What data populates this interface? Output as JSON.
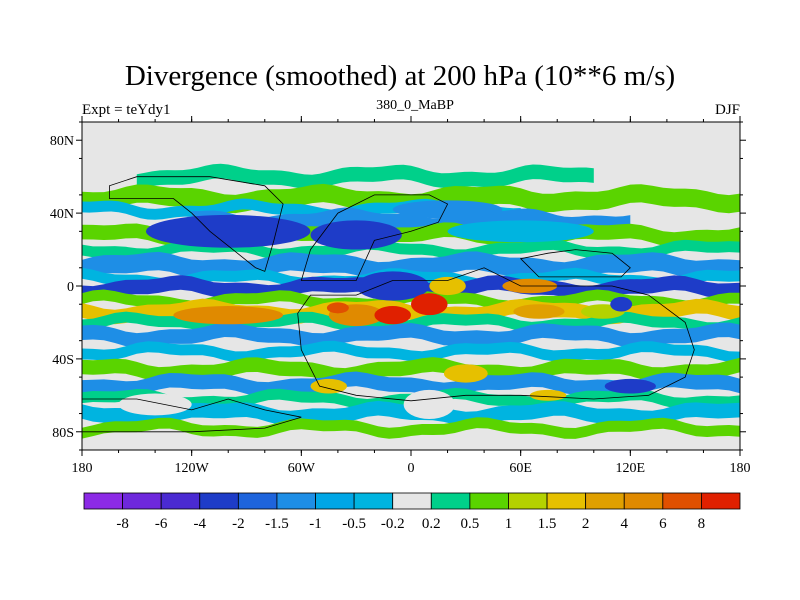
{
  "title": "Divergence (smoothed) at 200 hPa (10**6 m/s)",
  "left_string": "Expt = teYdy1",
  "center_string": "380_0_MaBP",
  "right_string": "DJF",
  "map": {
    "projection": "cylindrical-equidistant",
    "lon_range": [
      -180,
      180
    ],
    "lat_range": [
      -90,
      90
    ],
    "lat_ticks": [
      {
        "value": 80,
        "label": "80N"
      },
      {
        "value": 40,
        "label": "40N"
      },
      {
        "value": 0,
        "label": "0"
      },
      {
        "value": -40,
        "label": "40S"
      },
      {
        "value": -80,
        "label": "80S"
      }
    ],
    "lon_ticks": [
      {
        "value": -180,
        "label": "180"
      },
      {
        "value": -120,
        "label": "120W"
      },
      {
        "value": -60,
        "label": "60W"
      },
      {
        "value": 0,
        "label": "0"
      },
      {
        "value": 60,
        "label": "60E"
      },
      {
        "value": 120,
        "label": "120E"
      },
      {
        "value": 180,
        "label": "180"
      }
    ],
    "background_color": "#e6e6e6",
    "divergence_bands": [
      {
        "lat": 73,
        "half_width": 3,
        "lon_start": -180,
        "lon_end": 180,
        "color": "#e6e6e6"
      },
      {
        "lat": 60,
        "half_width": 4,
        "lon_start": -150,
        "lon_end": 100,
        "color": "#00d08a"
      },
      {
        "lat": 48,
        "half_width": 5,
        "lon_start": -180,
        "lon_end": 180,
        "color": "#5ad400"
      },
      {
        "lat": 42,
        "half_width": 3,
        "lon_start": -180,
        "lon_end": 60,
        "color": "#00b4e0"
      },
      {
        "lat": 36,
        "half_width": 4,
        "lon_start": -120,
        "lon_end": 120,
        "color": "#1e8ee6"
      },
      {
        "lat": 28,
        "half_width": 4,
        "lon_start": -180,
        "lon_end": 180,
        "color": "#5ad400"
      },
      {
        "lat": 20,
        "half_width": 3,
        "lon_start": -180,
        "lon_end": 180,
        "color": "#00d08a"
      },
      {
        "lat": 11,
        "half_width": 5,
        "lon_start": -180,
        "lon_end": 180,
        "color": "#1e8ee6"
      },
      {
        "lat": 4,
        "half_width": 3,
        "lon_start": -180,
        "lon_end": 180,
        "color": "#00b4e0"
      },
      {
        "lat": -1,
        "half_width": 4,
        "lon_start": -180,
        "lon_end": 180,
        "color": "#1e3cc8"
      },
      {
        "lat": -8,
        "half_width": 3,
        "lon_start": -180,
        "lon_end": 180,
        "color": "#5ad400"
      },
      {
        "lat": -14,
        "half_width": 4,
        "lon_start": -180,
        "lon_end": 180,
        "color": "#e6c000"
      },
      {
        "lat": -20,
        "half_width": 3,
        "lon_start": -180,
        "lon_end": 180,
        "color": "#00d08a"
      },
      {
        "lat": -27,
        "half_width": 4,
        "lon_start": -180,
        "lon_end": 180,
        "color": "#1e8ee6"
      },
      {
        "lat": -36,
        "half_width": 3,
        "lon_start": -180,
        "lon_end": 180,
        "color": "#00b4e0"
      },
      {
        "lat": -46,
        "half_width": 4,
        "lon_start": -180,
        "lon_end": 180,
        "color": "#5ad400"
      },
      {
        "lat": -54,
        "half_width": 4,
        "lon_start": -180,
        "lon_end": 180,
        "color": "#1e8ee6"
      },
      {
        "lat": -62,
        "half_width": 3,
        "lon_start": -180,
        "lon_end": 180,
        "color": "#00d08a"
      },
      {
        "lat": -70,
        "half_width": 4,
        "lon_start": -180,
        "lon_end": 180,
        "color": "#00b4e0"
      },
      {
        "lat": -78,
        "half_width": 3,
        "lon_start": -180,
        "lon_end": 180,
        "color": "#5ad400"
      }
    ],
    "divergence_blobs": [
      {
        "lon": -100,
        "lat": 30,
        "rlon": 45,
        "rlat": 9,
        "color": "#1e3cc8"
      },
      {
        "lon": -30,
        "lat": 28,
        "rlon": 25,
        "rlat": 8,
        "color": "#1e3cc8"
      },
      {
        "lon": 20,
        "lat": 42,
        "rlon": 30,
        "rlat": 5,
        "color": "#1e8ee6"
      },
      {
        "lon": 60,
        "lat": 30,
        "rlon": 40,
        "rlat": 6,
        "color": "#00b4e0"
      },
      {
        "lon": -10,
        "lat": 0,
        "rlon": 20,
        "rlat": 8,
        "color": "#1e3cc8"
      },
      {
        "lon": 20,
        "lat": 0,
        "rlon": 10,
        "rlat": 5,
        "color": "#e6c000"
      },
      {
        "lon": 65,
        "lat": 0,
        "rlon": 15,
        "rlat": 4,
        "color": "#e08a00"
      },
      {
        "lon": -100,
        "lat": -16,
        "rlon": 30,
        "rlat": 5,
        "color": "#e08a00"
      },
      {
        "lon": -30,
        "lat": -16,
        "rlon": 15,
        "rlat": 6,
        "color": "#e08a00"
      },
      {
        "lon": -10,
        "lat": -16,
        "rlon": 10,
        "rlat": 5,
        "color": "#e02000"
      },
      {
        "lon": 10,
        "lat": -10,
        "rlon": 10,
        "rlat": 6,
        "color": "#e02000"
      },
      {
        "lon": -40,
        "lat": -12,
        "rlon": 6,
        "rlat": 3,
        "color": "#e05000"
      },
      {
        "lon": 70,
        "lat": -14,
        "rlon": 14,
        "rlat": 4,
        "color": "#e0a000"
      },
      {
        "lon": 105,
        "lat": -14,
        "rlon": 12,
        "rlat": 4,
        "color": "#b4d200"
      },
      {
        "lon": 115,
        "lat": -10,
        "rlon": 6,
        "rlat": 4,
        "color": "#1e3cc8"
      },
      {
        "lon": -45,
        "lat": -55,
        "rlon": 10,
        "rlat": 4,
        "color": "#e6c000"
      },
      {
        "lon": 30,
        "lat": -48,
        "rlon": 12,
        "rlat": 5,
        "color": "#e6c000"
      },
      {
        "lon": 75,
        "lat": -60,
        "rlon": 10,
        "rlat": 3,
        "color": "#e6c000"
      },
      {
        "lon": 120,
        "lat": -55,
        "rlon": 14,
        "rlat": 4,
        "color": "#1e3cc8"
      },
      {
        "lon": -140,
        "lat": -65,
        "rlon": 20,
        "rlat": 6,
        "color": "#e6e6e6"
      },
      {
        "lon": 10,
        "lat": -65,
        "rlon": 14,
        "rlat": 8,
        "color": "#e6e6e6"
      }
    ],
    "land_outlines": [
      {
        "name": "north-america-outline",
        "points": [
          [
            -165,
            48
          ],
          [
            -130,
            48
          ],
          [
            -120,
            40
          ],
          [
            -110,
            30
          ],
          [
            -95,
            18
          ],
          [
            -85,
            10
          ],
          [
            -80,
            8
          ],
          [
            -75,
            25
          ],
          [
            -70,
            45
          ],
          [
            -80,
            55
          ],
          [
            -110,
            60
          ],
          [
            -150,
            60
          ],
          [
            -165,
            55
          ]
        ]
      },
      {
        "name": "laurussia-outline",
        "points": [
          [
            -60,
            3
          ],
          [
            -30,
            3
          ],
          [
            -20,
            25
          ],
          [
            0,
            30
          ],
          [
            15,
            35
          ],
          [
            20,
            45
          ],
          [
            10,
            50
          ],
          [
            -20,
            50
          ],
          [
            -40,
            40
          ],
          [
            -55,
            20
          ]
        ]
      },
      {
        "name": "gondwana-outline",
        "points": [
          [
            -55,
            -5
          ],
          [
            -30,
            -5
          ],
          [
            -10,
            3
          ],
          [
            20,
            3
          ],
          [
            40,
            10
          ],
          [
            60,
            0
          ],
          [
            90,
            0
          ],
          [
            110,
            0
          ],
          [
            130,
            -5
          ],
          [
            150,
            -20
          ],
          [
            155,
            -35
          ],
          [
            150,
            -50
          ],
          [
            130,
            -60
          ],
          [
            100,
            -62
          ],
          [
            60,
            -60
          ],
          [
            30,
            -60
          ],
          [
            0,
            -63
          ],
          [
            -30,
            -60
          ],
          [
            -50,
            -55
          ],
          [
            -60,
            -35
          ],
          [
            -62,
            -15
          ]
        ]
      },
      {
        "name": "south-polar-outline",
        "points": [
          [
            -180,
            -62
          ],
          [
            -150,
            -62
          ],
          [
            -120,
            -68
          ],
          [
            -100,
            -62
          ],
          [
            -80,
            -68
          ],
          [
            -60,
            -72
          ],
          [
            -80,
            -78
          ],
          [
            -120,
            -80
          ],
          [
            -180,
            -80
          ]
        ]
      },
      {
        "name": "east-landmass-outline",
        "points": [
          [
            60,
            15
          ],
          [
            75,
            18
          ],
          [
            90,
            20
          ],
          [
            110,
            18
          ],
          [
            120,
            10
          ],
          [
            115,
            5
          ],
          [
            95,
            5
          ],
          [
            70,
            5
          ]
        ]
      }
    ]
  },
  "colorbar": {
    "colors": [
      "#8c2ae6",
      "#6e28dc",
      "#4a2ad2",
      "#1e3cc8",
      "#1e64dc",
      "#1e8ee6",
      "#00a6e6",
      "#00b4e0",
      "#e6e6e6",
      "#00d08a",
      "#5ad400",
      "#b4d200",
      "#e6c000",
      "#e0a000",
      "#e08a00",
      "#e05000",
      "#e02000"
    ],
    "labels": [
      "-8",
      "-6",
      "-4",
      "-2",
      "-1.5",
      "-1",
      "-0.5",
      "-0.2",
      "0.2",
      "0.5",
      "1",
      "1.5",
      "2",
      "4",
      "6",
      "8"
    ]
  }
}
